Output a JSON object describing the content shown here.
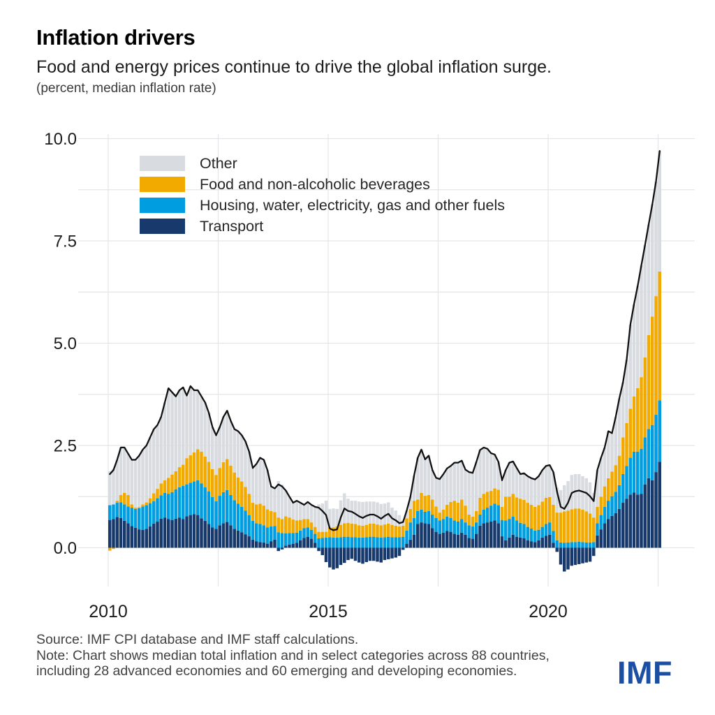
{
  "header": {
    "title": "Inflation drivers",
    "subtitle": "Food and energy prices continue to drive the global inflation surge.",
    "unit_note": "(percent, median inflation rate)"
  },
  "legend": {
    "items": [
      {
        "label": "Other",
        "color": "#d8dbdf"
      },
      {
        "label": "Food and non-alcoholic beverages",
        "color": "#f2a900"
      },
      {
        "label": "Housing, water, electricity, gas and other fuels",
        "color": "#009de0"
      },
      {
        "label": "Transport",
        "color": "#17396c"
      }
    ]
  },
  "footer": {
    "source": "Source: IMF CPI database and IMF staff calculations.",
    "note_line1": "Note: Chart shows median total inflation and in select categories across 88 countries,",
    "note_line2": "including 28 advanced economies and 60 emerging and developing economies.",
    "logo": "IMF",
    "logo_color": "#1c4fa1"
  },
  "chart_data": {
    "type": "bar",
    "variant": "stacked-monthly-bars-with-total-line",
    "title": "Inflation drivers",
    "ylabel": "percent, median inflation rate",
    "start_month": "2010-01",
    "end_month": "2022-07",
    "frequency": "monthly",
    "ylim": [
      -1.2,
      10.2
    ],
    "y_ticks": [
      0.0,
      2.5,
      5.0,
      7.5,
      10.0
    ],
    "y_gridline_step": 1.25,
    "x_ticks": [
      2010,
      2015,
      2020
    ],
    "x_gridline_years": [
      2010,
      2012.5,
      2015,
      2017.5,
      2020,
      2022.5
    ],
    "grid": true,
    "legend_position": "top-left-inside",
    "line": {
      "name": "Total median inflation",
      "color": "#111111",
      "derived": "sum of the four stacked categories"
    },
    "series": [
      {
        "name": "Transport",
        "color": "#17396c",
        "values": [
          0.68,
          0.7,
          0.75,
          0.73,
          0.66,
          0.6,
          0.53,
          0.49,
          0.45,
          0.44,
          0.46,
          0.52,
          0.59,
          0.64,
          0.71,
          0.74,
          0.7,
          0.68,
          0.71,
          0.74,
          0.7,
          0.77,
          0.8,
          0.82,
          0.8,
          0.72,
          0.66,
          0.58,
          0.5,
          0.46,
          0.55,
          0.6,
          0.63,
          0.55,
          0.46,
          0.42,
          0.38,
          0.33,
          0.28,
          0.2,
          0.16,
          0.14,
          0.13,
          0.1,
          0.16,
          0.2,
          -0.08,
          -0.04,
          0.05,
          0.08,
          0.1,
          0.12,
          0.18,
          0.24,
          0.27,
          0.22,
          0.12,
          -0.08,
          -0.18,
          -0.35,
          -0.48,
          -0.53,
          -0.5,
          -0.42,
          -0.37,
          -0.3,
          -0.27,
          -0.32,
          -0.36,
          -0.39,
          -0.35,
          -0.32,
          -0.32,
          -0.34,
          -0.36,
          -0.3,
          -0.28,
          -0.26,
          -0.24,
          -0.2,
          -0.05,
          0.1,
          0.2,
          0.32,
          0.58,
          0.62,
          0.6,
          0.58,
          0.48,
          0.39,
          0.34,
          0.37,
          0.41,
          0.39,
          0.34,
          0.32,
          0.37,
          0.32,
          0.24,
          0.22,
          0.34,
          0.54,
          0.6,
          0.62,
          0.64,
          0.67,
          0.6,
          0.28,
          0.18,
          0.25,
          0.32,
          0.27,
          0.25,
          0.23,
          0.18,
          0.16,
          0.14,
          0.18,
          0.25,
          0.29,
          0.32,
          0.12,
          -0.1,
          -0.41,
          -0.58,
          -0.53,
          -0.44,
          -0.42,
          -0.4,
          -0.38,
          -0.36,
          -0.34,
          -0.2,
          0.3,
          0.45,
          0.6,
          0.7,
          0.78,
          0.85,
          0.95,
          1.1,
          1.2,
          1.3,
          1.35,
          1.3,
          1.32,
          1.55,
          1.7,
          1.65,
          1.85,
          2.1
        ]
      },
      {
        "name": "Housing, water, electricity, gas and other fuels",
        "color": "#009de0",
        "values": [
          0.36,
          0.36,
          0.35,
          0.38,
          0.4,
          0.41,
          0.45,
          0.46,
          0.52,
          0.57,
          0.58,
          0.57,
          0.55,
          0.57,
          0.57,
          0.6,
          0.62,
          0.68,
          0.72,
          0.74,
          0.81,
          0.78,
          0.79,
          0.8,
          0.85,
          0.85,
          0.82,
          0.8,
          0.74,
          0.68,
          0.72,
          0.76,
          0.78,
          0.74,
          0.7,
          0.66,
          0.62,
          0.58,
          0.52,
          0.46,
          0.44,
          0.44,
          0.42,
          0.4,
          0.36,
          0.33,
          0.38,
          0.36,
          0.3,
          0.28,
          0.26,
          0.25,
          0.24,
          0.24,
          0.23,
          0.22,
          0.22,
          0.23,
          0.24,
          0.25,
          0.26,
          0.25,
          0.25,
          0.26,
          0.27,
          0.27,
          0.26,
          0.26,
          0.25,
          0.25,
          0.26,
          0.27,
          0.27,
          0.26,
          0.25,
          0.26,
          0.27,
          0.26,
          0.26,
          0.26,
          0.27,
          0.32,
          0.42,
          0.41,
          0.32,
          0.31,
          0.28,
          0.32,
          0.33,
          0.34,
          0.33,
          0.33,
          0.35,
          0.34,
          0.33,
          0.32,
          0.33,
          0.3,
          0.31,
          0.3,
          0.28,
          0.27,
          0.33,
          0.36,
          0.39,
          0.41,
          0.44,
          0.4,
          0.49,
          0.45,
          0.44,
          0.4,
          0.36,
          0.35,
          0.33,
          0.31,
          0.28,
          0.26,
          0.26,
          0.29,
          0.3,
          0.29,
          0.18,
          0.13,
          0.12,
          0.13,
          0.14,
          0.14,
          0.15,
          0.14,
          0.13,
          0.13,
          0.14,
          0.3,
          0.35,
          0.4,
          0.45,
          0.48,
          0.52,
          0.58,
          0.7,
          0.8,
          0.9,
          1.0,
          1.05,
          1.1,
          1.15,
          1.2,
          1.35,
          1.4,
          1.5
        ]
      },
      {
        "name": "Food and non-alcoholic beverages",
        "color": "#f2a900",
        "values": [
          -0.07,
          -0.03,
          0.05,
          0.18,
          0.28,
          0.28,
          0.08,
          0.03,
          0.02,
          0.05,
          0.07,
          0.12,
          0.19,
          0.23,
          0.29,
          0.31,
          0.39,
          0.43,
          0.44,
          0.49,
          0.52,
          0.64,
          0.67,
          0.71,
          0.76,
          0.78,
          0.75,
          0.72,
          0.68,
          0.64,
          0.68,
          0.73,
          0.76,
          0.72,
          0.68,
          0.64,
          0.62,
          0.58,
          0.52,
          0.44,
          0.46,
          0.5,
          0.48,
          0.44,
          0.38,
          0.34,
          0.36,
          0.34,
          0.42,
          0.38,
          0.33,
          0.3,
          0.26,
          0.22,
          0.2,
          0.18,
          0.17,
          0.16,
          0.15,
          0.14,
          0.24,
          0.25,
          0.27,
          0.3,
          0.33,
          0.34,
          0.33,
          0.32,
          0.3,
          0.29,
          0.3,
          0.32,
          0.32,
          0.31,
          0.3,
          0.31,
          0.32,
          0.3,
          0.28,
          0.26,
          0.27,
          0.3,
          0.33,
          0.42,
          0.28,
          0.41,
          0.39,
          0.39,
          0.37,
          0.28,
          0.19,
          0.23,
          0.29,
          0.39,
          0.48,
          0.46,
          0.48,
          0.41,
          0.26,
          0.24,
          0.28,
          0.41,
          0.39,
          0.39,
          0.36,
          0.37,
          0.38,
          0.32,
          0.58,
          0.55,
          0.56,
          0.56,
          0.59,
          0.59,
          0.59,
          0.58,
          0.58,
          0.6,
          0.62,
          0.64,
          0.62,
          0.64,
          0.68,
          0.73,
          0.77,
          0.78,
          0.8,
          0.82,
          0.81,
          0.79,
          0.76,
          0.71,
          0.6,
          0.4,
          0.45,
          0.5,
          0.55,
          0.6,
          0.65,
          0.72,
          0.9,
          1.05,
          1.2,
          1.35,
          1.55,
          1.75,
          1.95,
          2.3,
          2.65,
          2.9,
          3.15
        ]
      },
      {
        "name": "Other",
        "color": "#d8dbdf",
        "values": [
          0.83,
          0.87,
          1.0,
          1.16,
          1.11,
          1.01,
          1.09,
          1.17,
          1.26,
          1.34,
          1.39,
          1.49,
          1.57,
          1.56,
          1.63,
          1.9,
          2.19,
          2.01,
          1.83,
          1.88,
          1.89,
          1.53,
          1.69,
          1.52,
          1.44,
          1.35,
          1.32,
          1.2,
          1.03,
          0.97,
          1.0,
          1.11,
          1.18,
          1.09,
          1.06,
          1.13,
          1.13,
          1.11,
          1.03,
          0.85,
          0.99,
          1.12,
          1.12,
          0.96,
          0.6,
          0.58,
          0.89,
          0.84,
          0.63,
          0.51,
          0.41,
          0.48,
          0.42,
          0.35,
          0.42,
          0.43,
          0.49,
          0.67,
          0.69,
          0.76,
          0.45,
          0.46,
          0.43,
          0.6,
          0.73,
          0.59,
          0.56,
          0.57,
          0.58,
          0.58,
          0.57,
          0.54,
          0.54,
          0.54,
          0.52,
          0.51,
          0.52,
          0.42,
          0.37,
          0.28,
          0.14,
          0.19,
          0.3,
          0.61,
          1.02,
          1.06,
          0.89,
          0.96,
          0.72,
          0.7,
          0.82,
          0.87,
          0.89,
          0.88,
          0.93,
          0.98,
          0.95,
          0.88,
          1.04,
          1.07,
          1.2,
          1.17,
          1.13,
          1.05,
          0.92,
          0.83,
          0.68,
          0.65,
          0.65,
          0.83,
          0.79,
          0.72,
          0.6,
          0.65,
          0.65,
          0.65,
          0.67,
          0.71,
          0.77,
          0.78,
          0.78,
          0.8,
          0.61,
          0.55,
          0.64,
          0.72,
          0.84,
          0.84,
          0.84,
          0.82,
          0.81,
          0.76,
          0.6,
          0.9,
          0.95,
          0.95,
          1.15,
          0.94,
          1.18,
          1.4,
          1.35,
          1.55,
          2.05,
          2.25,
          2.5,
          2.73,
          2.75,
          2.7,
          2.75,
          2.8,
          2.95
        ]
      }
    ]
  }
}
